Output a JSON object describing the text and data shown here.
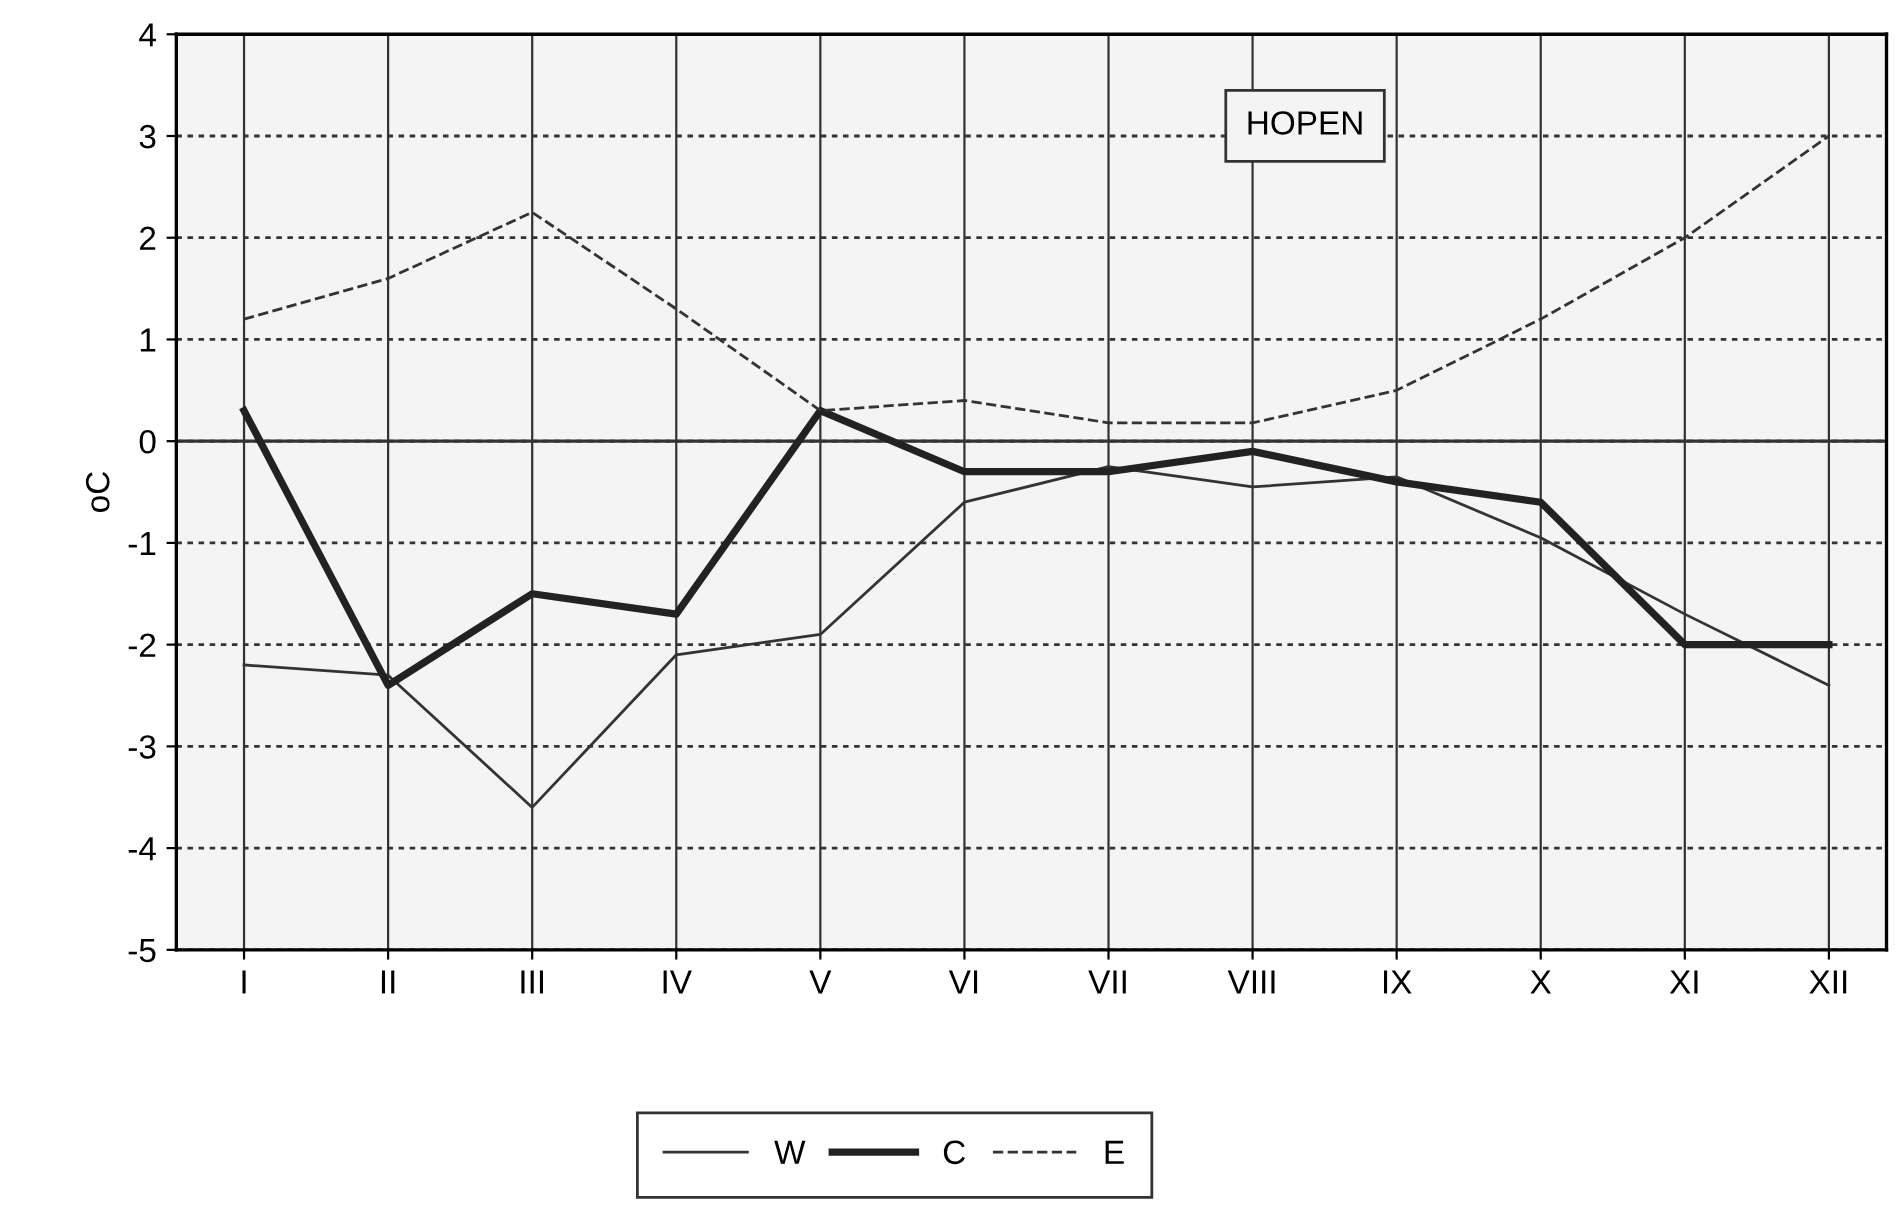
{
  "chart_data": {
    "type": "line",
    "ylabel": "oC",
    "categories": [
      "I",
      "II",
      "III",
      "IV",
      "V",
      "VI",
      "VII",
      "VIII",
      "IX",
      "X",
      "XI",
      "XII"
    ],
    "series": [
      {
        "name": "W",
        "color": "#333333",
        "line_style": "solid",
        "values": [
          -2.2,
          -2.3,
          -3.6,
          -2.1,
          -1.9,
          -0.6,
          -0.25,
          -0.45,
          -0.35,
          -0.95,
          -1.7,
          -2.4
        ]
      },
      {
        "name": "C",
        "color": "#222222",
        "line_style": "solid",
        "values": [
          0.3,
          -2.4,
          -1.5,
          -1.7,
          0.3,
          -0.3,
          -0.3,
          -0.1,
          -0.4,
          -0.6,
          -2.0,
          -2.0
        ]
      },
      {
        "name": "E",
        "color": "#333333",
        "line_style": "dashed",
        "values": [
          1.2,
          1.6,
          2.25,
          1.3,
          0.3,
          0.4,
          0.18,
          0.18,
          0.5,
          1.2,
          2.0,
          3.0
        ]
      }
    ],
    "ylim": [
      -5,
      4
    ],
    "yticks": [
      -5,
      -4,
      -3,
      -2,
      -1,
      0,
      1,
      2,
      3,
      4
    ],
    "ref_lines": [
      {
        "axis": "y",
        "value": 0,
        "color": "#333333"
      }
    ],
    "annotations": [
      "HOPEN"
    ],
    "grid": true,
    "legend": "bottom",
    "marker": "none"
  }
}
